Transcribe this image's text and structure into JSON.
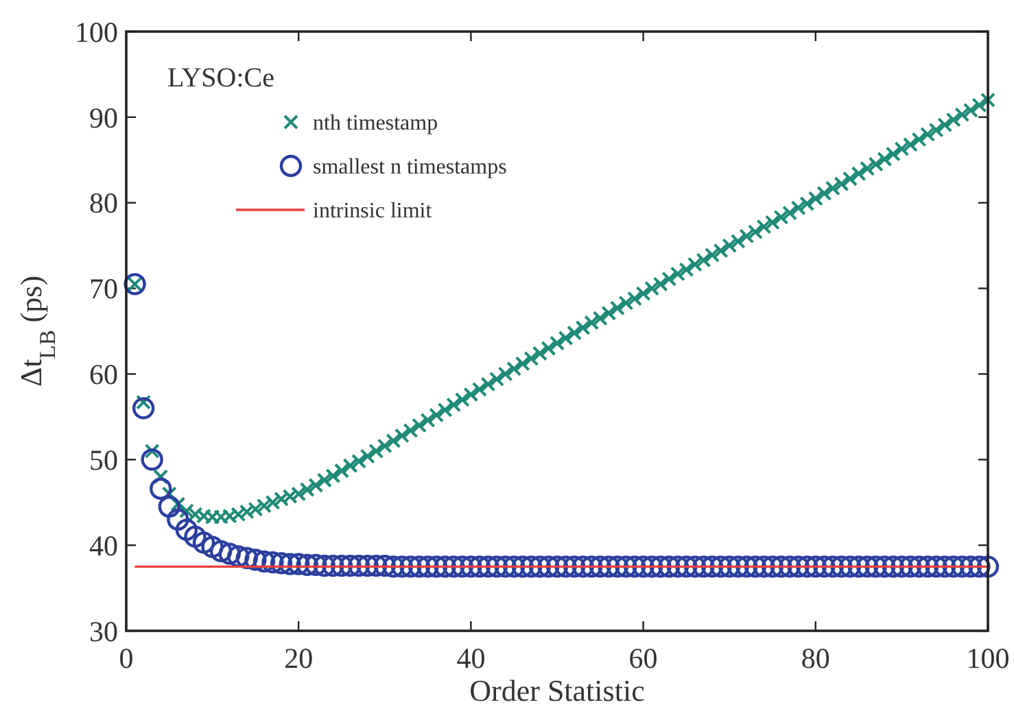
{
  "chart_data": {
    "type": "scatter",
    "xlabel": "Order Statistic",
    "ylabel": "Δt$_{LB}$ (ps)",
    "legend_title": "LYSO:Ce",
    "xlim": [
      0,
      100
    ],
    "xticks": [
      0,
      20,
      40,
      60,
      80,
      100
    ],
    "ylim": [
      30,
      100
    ],
    "yticks": [
      30,
      40,
      50,
      60,
      70,
      80,
      90,
      100
    ],
    "grid": false,
    "legend": "top left",
    "series": [
      {
        "name": "nth timestamp",
        "marker": "cross",
        "color": "#1f8a78",
        "x": [
          1,
          2,
          3,
          4,
          5,
          6,
          7,
          8,
          9,
          10,
          11,
          12,
          13,
          14,
          15,
          16,
          17,
          18,
          19,
          20,
          21,
          22,
          23,
          24,
          25,
          26,
          27,
          28,
          29,
          30,
          31,
          32,
          33,
          34,
          35,
          36,
          37,
          38,
          39,
          40,
          41,
          42,
          43,
          44,
          45,
          46,
          47,
          48,
          49,
          50,
          51,
          52,
          53,
          54,
          55,
          56,
          57,
          58,
          59,
          60,
          61,
          62,
          63,
          64,
          65,
          66,
          67,
          68,
          69,
          70,
          71,
          72,
          73,
          74,
          75,
          76,
          77,
          78,
          79,
          80,
          81,
          82,
          83,
          84,
          85,
          86,
          87,
          88,
          89,
          90,
          91,
          92,
          93,
          94,
          95,
          96,
          97,
          98,
          99,
          100
        ],
        "values": [
          70.5,
          56.7,
          51,
          48,
          46,
          44.8,
          44,
          43.6,
          43.4,
          43.3,
          43.3,
          43.4,
          43.6,
          43.9,
          44.2,
          44.6,
          45.0,
          45.4,
          45.7,
          46.0,
          46.5,
          47.0,
          47.6,
          48.1,
          48.7,
          49.3,
          49.8,
          50.4,
          51.0,
          51.6,
          52.2,
          52.8,
          53.4,
          54.0,
          54.6,
          55.2,
          55.8,
          56.4,
          57.0,
          57.6,
          58.2,
          58.8,
          59.4,
          60.0,
          60.6,
          61.2,
          61.8,
          62.4,
          63.0,
          63.6,
          64.2,
          64.8,
          65.4,
          66.0,
          66.5,
          67.1,
          67.7,
          68.3,
          68.8,
          69.4,
          70.0,
          70.5,
          71.1,
          71.7,
          72.2,
          72.8,
          73.3,
          73.9,
          74.4,
          75.0,
          75.5,
          76.1,
          76.6,
          77.2,
          77.7,
          78.3,
          78.8,
          79.4,
          79.9,
          80.5,
          81.1,
          81.7,
          82.2,
          82.8,
          83.4,
          84.0,
          84.5,
          85.1,
          85.7,
          86.3,
          86.8,
          87.4,
          88.0,
          88.5,
          89.1,
          89.7,
          90.3,
          90.8,
          91.4,
          92.0
        ]
      },
      {
        "name": "smallest n timestamps",
        "marker": "circle",
        "color": "#2b3f9e",
        "x": [
          1,
          2,
          3,
          4,
          5,
          6,
          7,
          8,
          9,
          10,
          11,
          12,
          13,
          14,
          15,
          16,
          17,
          18,
          19,
          20,
          21,
          22,
          23,
          24,
          25,
          26,
          27,
          28,
          29,
          30,
          31,
          32,
          33,
          34,
          35,
          36,
          37,
          38,
          39,
          40,
          41,
          42,
          43,
          44,
          45,
          46,
          47,
          48,
          49,
          50,
          51,
          52,
          53,
          54,
          55,
          56,
          57,
          58,
          59,
          60,
          61,
          62,
          63,
          64,
          65,
          66,
          67,
          68,
          69,
          70,
          71,
          72,
          73,
          74,
          75,
          76,
          77,
          78,
          79,
          80,
          81,
          82,
          83,
          84,
          85,
          86,
          87,
          88,
          89,
          90,
          91,
          92,
          93,
          94,
          95,
          96,
          97,
          98,
          99,
          100
        ],
        "values": [
          70.5,
          56,
          50,
          46.6,
          44.5,
          43,
          41.8,
          41,
          40.3,
          39.8,
          39.3,
          39,
          38.7,
          38.5,
          38.3,
          38.1,
          38.0,
          37.9,
          37.8,
          37.8,
          37.7,
          37.7,
          37.6,
          37.6,
          37.6,
          37.6,
          37.6,
          37.6,
          37.6,
          37.6,
          37.5,
          37.5,
          37.5,
          37.5,
          37.5,
          37.5,
          37.5,
          37.5,
          37.5,
          37.5,
          37.5,
          37.5,
          37.5,
          37.5,
          37.5,
          37.5,
          37.5,
          37.5,
          37.5,
          37.5,
          37.5,
          37.5,
          37.5,
          37.5,
          37.5,
          37.5,
          37.5,
          37.5,
          37.5,
          37.5,
          37.5,
          37.5,
          37.5,
          37.5,
          37.5,
          37.5,
          37.5,
          37.5,
          37.5,
          37.5,
          37.5,
          37.5,
          37.5,
          37.5,
          37.5,
          37.5,
          37.5,
          37.5,
          37.5,
          37.5,
          37.5,
          37.5,
          37.5,
          37.5,
          37.5,
          37.5,
          37.5,
          37.5,
          37.5,
          37.5,
          37.5,
          37.5,
          37.5,
          37.5,
          37.5,
          37.5,
          37.5,
          37.5,
          37.5,
          37.5
        ]
      },
      {
        "name": "intrinsic limit",
        "type": "line",
        "marker": "none",
        "line_style": "solid",
        "color": "#e8413c",
        "x": [
          1,
          100
        ],
        "values": [
          37.5,
          37.5
        ]
      }
    ]
  }
}
